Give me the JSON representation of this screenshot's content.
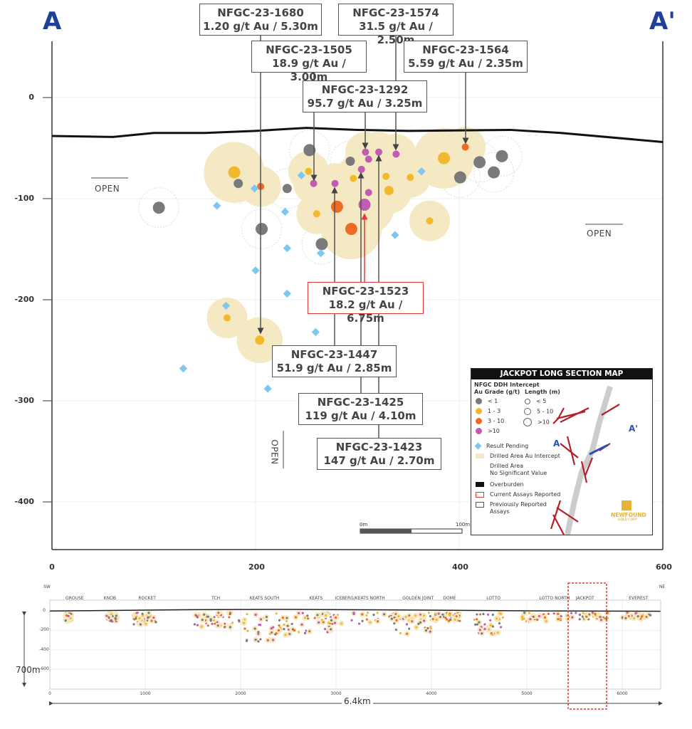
{
  "section": {
    "left_label": "A",
    "right_label": "A'",
    "open_left": "OPEN",
    "open_right": "OPEN",
    "open_down": "OPEN",
    "x_ticks": [
      0,
      200,
      400,
      600
    ],
    "y_ticks": [
      0,
      -100,
      -200,
      -300,
      -400
    ],
    "scale_bar": {
      "start": "0m",
      "end": "100m"
    },
    "colors": {
      "lt1": "#7a7a7a",
      "1-3": "#f2b92c",
      "3-10": "#f06a23",
      "gt10": "#c25bb2",
      "pending": "#7ec8f0",
      "halo": "#f5e9c3",
      "overburden": "#111111",
      "current": "#e43a3a",
      "previous": "#555555"
    },
    "overburden": [
      [
        0,
        -38
      ],
      [
        60,
        -39
      ],
      [
        100,
        -35
      ],
      [
        150,
        -35
      ],
      [
        200,
        -33
      ],
      [
        250,
        -30
      ],
      [
        300,
        -32
      ],
      [
        350,
        -33
      ],
      [
        450,
        -32
      ],
      [
        500,
        -35
      ],
      [
        600,
        -44
      ]
    ],
    "intercepts": [
      {
        "x": 105,
        "y": -109,
        "grade": "lt1",
        "len": ">10",
        "halo": false
      },
      {
        "x": 183,
        "y": -85,
        "grade": "lt1",
        "len": "5-10",
        "halo": false
      },
      {
        "x": 231,
        "y": -90,
        "grade": "lt1",
        "len": "5-10",
        "halo": false
      },
      {
        "x": 206,
        "y": -130,
        "grade": "lt1",
        "len": ">10",
        "halo": false
      },
      {
        "x": 253,
        "y": -52,
        "grade": "lt1",
        "len": ">10",
        "halo": false
      },
      {
        "x": 265,
        "y": -145,
        "grade": "lt1",
        "len": ">10",
        "halo": false
      },
      {
        "x": 293,
        "y": -63,
        "grade": "lt1",
        "len": "5-10",
        "halo": false
      },
      {
        "x": 401,
        "y": -79,
        "grade": "lt1",
        "len": ">10",
        "halo": false
      },
      {
        "x": 420,
        "y": -64,
        "grade": "lt1",
        "len": ">10",
        "halo": false
      },
      {
        "x": 434,
        "y": -74,
        "grade": "lt1",
        "len": ">10",
        "halo": false
      },
      {
        "x": 442,
        "y": -58,
        "grade": "lt1",
        "len": ">10",
        "halo": false
      },
      {
        "x": 179,
        "y": -74,
        "grade": "1-3",
        "len": ">10",
        "halo": true
      },
      {
        "x": 252,
        "y": -73,
        "grade": "1-3",
        "len": "<5",
        "halo": true
      },
      {
        "x": 260,
        "y": -115,
        "grade": "1-3",
        "len": "<5",
        "halo": true
      },
      {
        "x": 296,
        "y": -80,
        "grade": "1-3",
        "len": "<5",
        "halo": true
      },
      {
        "x": 328,
        "y": -78,
        "grade": "1-3",
        "len": "<5",
        "halo": true
      },
      {
        "x": 331,
        "y": -92,
        "grade": "1-3",
        "len": "5-10",
        "halo": true
      },
      {
        "x": 352,
        "y": -79,
        "grade": "1-3",
        "len": "<5",
        "halo": true
      },
      {
        "x": 385,
        "y": -60,
        "grade": "1-3",
        "len": ">10",
        "halo": true
      },
      {
        "x": 371,
        "y": -122,
        "grade": "1-3",
        "len": "<5",
        "halo": true
      },
      {
        "x": 172,
        "y": -218,
        "grade": "1-3",
        "len": "<5",
        "halo": true
      },
      {
        "x": 204,
        "y": -240,
        "grade": "1-3",
        "len": "5-10",
        "halo": true
      },
      {
        "x": 205,
        "y": -88,
        "grade": "3-10",
        "len": "<5",
        "halo": true
      },
      {
        "x": 280,
        "y": -108,
        "grade": "3-10",
        "len": ">10",
        "halo": true
      },
      {
        "x": 294,
        "y": -130,
        "grade": "3-10",
        "len": ">10",
        "halo": true
      },
      {
        "x": 406,
        "y": -49,
        "grade": "3-10",
        "len": "<5",
        "halo": true
      },
      {
        "x": 257,
        "y": -85,
        "grade": "gt10",
        "len": "<5",
        "halo": true
      },
      {
        "x": 278,
        "y": -85,
        "grade": "gt10",
        "len": "<5",
        "halo": true
      },
      {
        "x": 308,
        "y": -54,
        "grade": "gt10",
        "len": "<5",
        "halo": true
      },
      {
        "x": 311,
        "y": -61,
        "grade": "gt10",
        "len": "<5",
        "halo": true
      },
      {
        "x": 321,
        "y": -54,
        "grade": "gt10",
        "len": "<5",
        "halo": true
      },
      {
        "x": 338,
        "y": -56,
        "grade": "gt10",
        "len": "<5",
        "halo": true
      },
      {
        "x": 304,
        "y": -71,
        "grade": "gt10",
        "len": "<5",
        "halo": true
      },
      {
        "x": 311,
        "y": -94,
        "grade": "gt10",
        "len": "<5",
        "halo": true
      },
      {
        "x": 307,
        "y": -106,
        "grade": "gt10",
        "len": ">10",
        "halo": true
      }
    ],
    "pending": [
      [
        162,
        -107
      ],
      [
        199,
        -90
      ],
      [
        229,
        -113
      ],
      [
        200,
        -171
      ],
      [
        212,
        -288
      ],
      [
        129,
        -268
      ],
      [
        171,
        -206
      ],
      [
        231,
        -194
      ],
      [
        231,
        -149
      ],
      [
        259,
        -232
      ],
      [
        264,
        -154
      ],
      [
        245,
        -77
      ],
      [
        337,
        -136
      ],
      [
        363,
        -73
      ]
    ],
    "callouts": [
      {
        "hole": "NFGC-23-1680",
        "assay": "1.20 g/t Au / 5.30m",
        "status": "previous"
      },
      {
        "hole": "NFGC-23-1574",
        "assay": "31.5 g/t Au / 2.50m",
        "status": "previous"
      },
      {
        "hole": "NFGC-23-1505",
        "assay": "18.9 g/t Au / 3.00m",
        "status": "previous"
      },
      {
        "hole": "NFGC-23-1564",
        "assay": "5.59 g/t Au / 2.35m",
        "status": "previous"
      },
      {
        "hole": "NFGC-23-1292",
        "assay": "95.7 g/t Au / 3.25m",
        "status": "previous"
      },
      {
        "hole": "NFGC-23-1523",
        "assay": "18.2 g/t Au / 6.75m",
        "status": "current"
      },
      {
        "hole": "NFGC-23-1447",
        "assay": "51.9 g/t Au / 2.85m",
        "status": "previous"
      },
      {
        "hole": "NFGC-23-1425",
        "assay": "119 g/t Au / 4.10m",
        "status": "previous"
      },
      {
        "hole": "NFGC-23-1423",
        "assay": "147 g/t Au / 2.70m",
        "status": "previous"
      }
    ]
  },
  "legend": {
    "title": "JACKPOT LONG SECTION MAP",
    "subtitle": "NFGC DDH Intercept",
    "grade_header": "Au Grade (g/t)",
    "length_header": "Length (m)",
    "grades": [
      "< 1",
      "1 - 3",
      "3 - 10",
      ">10"
    ],
    "lengths": [
      "< 5",
      "5 - 10",
      ">10"
    ],
    "pending": "Result Pending",
    "drilled_au": "Drilled Area Au Intercept",
    "drilled_nsv_1": "Drilled Area",
    "drilled_nsv_2": "No Significant Value",
    "overburden": "Overburden",
    "current": "Current Assays Reported",
    "previous_1": "Previously Reported",
    "previous_2": "Assays",
    "map_a": "A",
    "map_a_prime": "A'",
    "logo_1": "NEWFOUND",
    "logo_2": "GOLD CORP"
  },
  "overview": {
    "sw": "SW",
    "ne": "NE",
    "depth_label": "700m",
    "length_label": "6.4km",
    "x_ticks": [
      0,
      1000,
      2000,
      3000,
      4000,
      5000,
      6000
    ],
    "y_ticks": [
      0,
      -200,
      -400,
      -600
    ],
    "zones": [
      {
        "name": "GROUSE",
        "x": 260
      },
      {
        "name": "KNOB",
        "x": 630
      },
      {
        "name": "ROCKET",
        "x": 1020
      },
      {
        "name": "TCH",
        "x": 1740
      },
      {
        "name": "KEATS SOUTH",
        "x": 2250
      },
      {
        "name": "KEATS",
        "x": 2790
      },
      {
        "name": "ICEBERG/KEATS NORTH",
        "x": 3250
      },
      {
        "name": "GOLDEN JOINT",
        "x": 3860
      },
      {
        "name": "DOME",
        "x": 4190
      },
      {
        "name": "LOTTO",
        "x": 4650
      },
      {
        "name": "LOTTO NORTH",
        "x": 5290
      },
      {
        "name": "JACKPOT",
        "x": 5610
      },
      {
        "name": "EVEREST",
        "x": 6170
      }
    ],
    "highlight_zone": "JACKPOT"
  }
}
